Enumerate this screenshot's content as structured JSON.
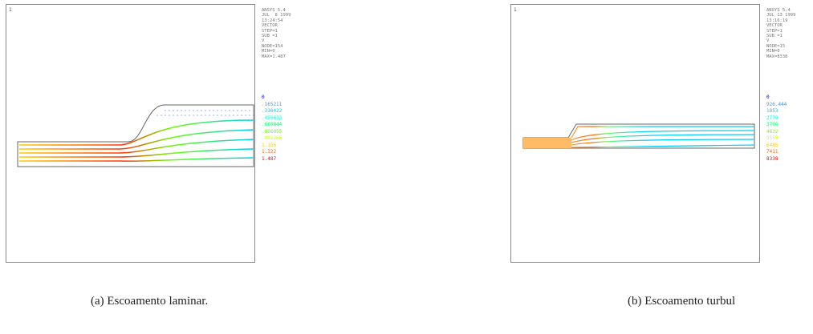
{
  "panels": [
    {
      "number": "1",
      "info": [
        "ANSYS 5.4",
        "JUL  8 1999",
        "13:24:54",
        "VECTOR",
        "STEP=1",
        "SUB =1",
        "V",
        "NODE=154",
        "MIN=0",
        "MAX=1.487"
      ],
      "legend": [
        "0",
        ".165211",
        ".330422",
        ".495633",
        ".660844",
        ".826055",
        ".991266",
        "1.156",
        "1.322",
        "1.487"
      ],
      "caption": "(a) Escoamento laminar."
    },
    {
      "number": "1",
      "info": [
        "ANSYS 5.4",
        "JUL 13 1999",
        "13:16:19",
        "VECTOR",
        "STEP=1",
        "SUB =1",
        "V",
        "NODE=15",
        "MIN=0",
        "MAX=8338"
      ],
      "legend": [
        "0",
        "926.444",
        "1853",
        "2779",
        "3706",
        "4632",
        "5559",
        "6485",
        "7411",
        "8338"
      ],
      "caption": "(b) Escoamento turbul"
    }
  ],
  "legend_colors": [
    "#0000ff",
    "#3399ff",
    "#00ccff",
    "#00ffcc",
    "#00ff66",
    "#66ff00",
    "#ccff00",
    "#ffcc00",
    "#ff6600",
    "#ff0000"
  ]
}
